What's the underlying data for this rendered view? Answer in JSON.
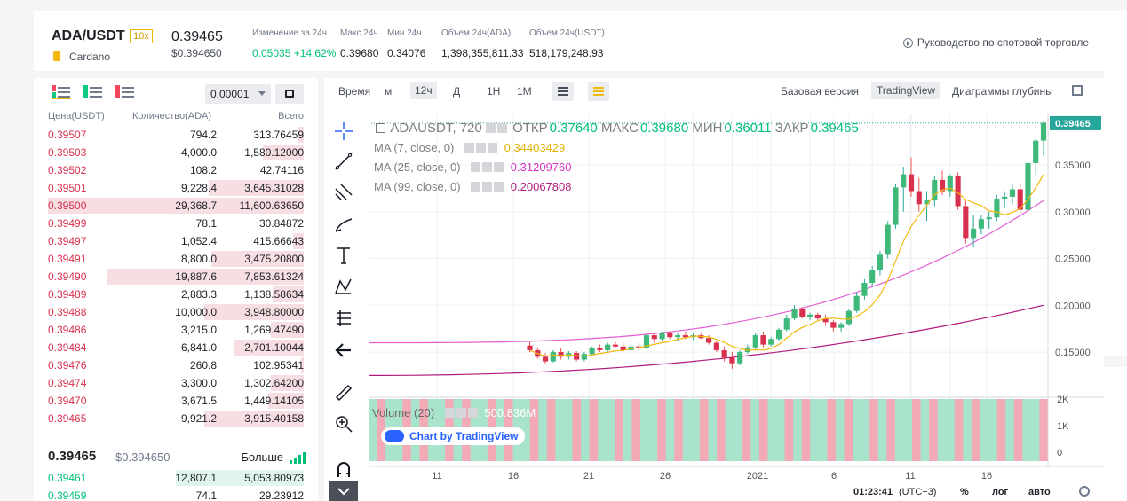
{
  "header": {
    "pair": "ADA/USDT",
    "leverage": "10x",
    "coin_name": "Cardano",
    "last_price": "0.39465",
    "last_price_usd": "$0.394650",
    "stats": [
      {
        "label": "Изменение за 24ч",
        "value": "0.05035 +14.62%",
        "color": "green"
      },
      {
        "label": "Макс 24ч",
        "value": "0.39680"
      },
      {
        "label": "Мин 24ч",
        "value": "0.34076"
      },
      {
        "label": "Объем 24ч(ADA)",
        "value": "1,398,355,811.33"
      },
      {
        "label": "Объем 24ч(USDT)",
        "value": "518,179,248.93"
      }
    ],
    "guide_link": "Руководство по спотовой торговле"
  },
  "orderbook": {
    "precision": "0.00001",
    "col_price": "Цена(USDT)",
    "col_qty": "Количество(ADA)",
    "col_total": "Всего",
    "asks": [
      {
        "price": "0.39507",
        "qty": "794.2",
        "total": "313.76459",
        "depth": 0.02
      },
      {
        "price": "0.39503",
        "qty": "4,000.0",
        "total": "1,580.12000",
        "depth": 0.16
      },
      {
        "price": "0.39502",
        "qty": "108.2",
        "total": "42.74116",
        "depth": 0.0
      },
      {
        "price": "0.39501",
        "qty": "9,228.4",
        "total": "3,645.31028",
        "depth": 0.37
      },
      {
        "price": "0.39500",
        "qty": "29,368.7",
        "total": "11,600.63650",
        "depth": 1.0
      },
      {
        "price": "0.39499",
        "qty": "78.1",
        "total": "30.84872",
        "depth": 0.0
      },
      {
        "price": "0.39497",
        "qty": "1,052.4",
        "total": "415.66643",
        "depth": 0.04
      },
      {
        "price": "0.39491",
        "qty": "8,800.0",
        "total": "3,475.20800",
        "depth": 0.36
      },
      {
        "price": "0.39490",
        "qty": "19,887.6",
        "total": "7,853.61324",
        "depth": 0.77
      },
      {
        "price": "0.39489",
        "qty": "2,883.3",
        "total": "1,138.58634",
        "depth": 0.12
      },
      {
        "price": "0.39488",
        "qty": "10,000.0",
        "total": "3,948.80000",
        "depth": 0.39
      },
      {
        "price": "0.39486",
        "qty": "3,215.0",
        "total": "1,269.47490",
        "depth": 0.13
      },
      {
        "price": "0.39484",
        "qty": "6,841.0",
        "total": "2,701.10044",
        "depth": 0.27
      },
      {
        "price": "0.39476",
        "qty": "260.8",
        "total": "102.95341",
        "depth": 0.01
      },
      {
        "price": "0.39474",
        "qty": "3,300.0",
        "total": "1,302.64200",
        "depth": 0.13
      },
      {
        "price": "0.39470",
        "qty": "3,671.5",
        "total": "1,449.14105",
        "depth": 0.14
      },
      {
        "price": "0.39465",
        "qty": "9,921.2",
        "total": "3,915.40158",
        "depth": 0.39
      }
    ],
    "mid_price": "0.39465",
    "mid_usd": "$0.394650",
    "more": "Больше",
    "bids": [
      {
        "price": "0.39461",
        "qty": "12,807.1",
        "total": "5,053.80973",
        "depth": 0.5
      },
      {
        "price": "0.39459",
        "qty": "74.1",
        "total": "29.23912",
        "depth": 0.0
      }
    ]
  },
  "chart_toolbar": {
    "time": "Время",
    "m": "м",
    "interval": "12ч",
    "d": "Д",
    "h1": "1Н",
    "m1": "1М",
    "basic": "Базовая версия",
    "tradingview": "TradingView",
    "depth": "Диаграммы глубины"
  },
  "legend": {
    "symbol": "ADAUSDT, 720",
    "open_label": "ОТКР",
    "open": "0.37640",
    "high_label": "МАКС",
    "high": "0.39680",
    "low_label": "МИН",
    "low": "0.36011",
    "close_label": "ЗАКР",
    "close": "0.39465",
    "ma7": "MA (7, close, 0)",
    "ma7_val": "0.34403429",
    "ma25": "MA (25, close, 0)",
    "ma25_val": "0.31209760",
    "ma99": "MA (99, close, 0)",
    "ma99_val": "0.20067808",
    "volume": "Volume (20)",
    "volume_val": "500.836M",
    "watermark": "Chart by TradingView"
  },
  "chart_data": {
    "type": "candlestick",
    "price_ticks": [
      "0.35000",
      "0.30000",
      "0.25000",
      "0.20000",
      "0.15000"
    ],
    "price_tick_values": [
      0.35,
      0.3,
      0.25,
      0.2,
      0.15
    ],
    "price_badge": "0.39465",
    "volume_ticks": [
      "2K",
      "1K",
      "0"
    ],
    "x_ticks": [
      "11",
      "16",
      "21",
      "26",
      "2021",
      "6",
      "11",
      "16"
    ],
    "ylim": [
      0.115,
      0.405
    ],
    "candles": [
      [
        0.157,
        0.161,
        0.15,
        0.152
      ],
      [
        0.152,
        0.155,
        0.143,
        0.145
      ],
      [
        0.145,
        0.149,
        0.137,
        0.14
      ],
      [
        0.14,
        0.152,
        0.139,
        0.15
      ],
      [
        0.15,
        0.154,
        0.142,
        0.145
      ],
      [
        0.145,
        0.151,
        0.142,
        0.149
      ],
      [
        0.149,
        0.151,
        0.14,
        0.142
      ],
      [
        0.142,
        0.15,
        0.14,
        0.148
      ],
      [
        0.148,
        0.156,
        0.146,
        0.154
      ],
      [
        0.154,
        0.158,
        0.15,
        0.152
      ],
      [
        0.152,
        0.16,
        0.15,
        0.158
      ],
      [
        0.158,
        0.162,
        0.155,
        0.156
      ],
      [
        0.156,
        0.16,
        0.15,
        0.152
      ],
      [
        0.152,
        0.158,
        0.15,
        0.156
      ],
      [
        0.156,
        0.16,
        0.152,
        0.154
      ],
      [
        0.154,
        0.17,
        0.153,
        0.168
      ],
      [
        0.168,
        0.171,
        0.16,
        0.164
      ],
      [
        0.164,
        0.172,
        0.162,
        0.17
      ],
      [
        0.17,
        0.172,
        0.164,
        0.166
      ],
      [
        0.166,
        0.17,
        0.162,
        0.168
      ],
      [
        0.168,
        0.172,
        0.164,
        0.166
      ],
      [
        0.166,
        0.17,
        0.163,
        0.168
      ],
      [
        0.168,
        0.171,
        0.164,
        0.165
      ],
      [
        0.165,
        0.168,
        0.158,
        0.16
      ],
      [
        0.16,
        0.162,
        0.15,
        0.152
      ],
      [
        0.152,
        0.156,
        0.14,
        0.144
      ],
      [
        0.144,
        0.15,
        0.132,
        0.138
      ],
      [
        0.138,
        0.152,
        0.136,
        0.15
      ],
      [
        0.15,
        0.158,
        0.148,
        0.155
      ],
      [
        0.155,
        0.17,
        0.153,
        0.168
      ],
      [
        0.168,
        0.172,
        0.155,
        0.158
      ],
      [
        0.158,
        0.166,
        0.156,
        0.164
      ],
      [
        0.164,
        0.176,
        0.162,
        0.174
      ],
      [
        0.174,
        0.19,
        0.172,
        0.186
      ],
      [
        0.186,
        0.2,
        0.184,
        0.196
      ],
      [
        0.196,
        0.198,
        0.186,
        0.188
      ],
      [
        0.188,
        0.192,
        0.184,
        0.19
      ],
      [
        0.19,
        0.192,
        0.184,
        0.186
      ],
      [
        0.186,
        0.19,
        0.178,
        0.182
      ],
      [
        0.182,
        0.184,
        0.172,
        0.176
      ],
      [
        0.176,
        0.182,
        0.172,
        0.18
      ],
      [
        0.18,
        0.196,
        0.178,
        0.194
      ],
      [
        0.194,
        0.214,
        0.192,
        0.21
      ],
      [
        0.21,
        0.228,
        0.206,
        0.224
      ],
      [
        0.224,
        0.242,
        0.22,
        0.238
      ],
      [
        0.238,
        0.258,
        0.232,
        0.254
      ],
      [
        0.254,
        0.29,
        0.25,
        0.286
      ],
      [
        0.286,
        0.33,
        0.282,
        0.326
      ],
      [
        0.326,
        0.348,
        0.3,
        0.34
      ],
      [
        0.34,
        0.358,
        0.316,
        0.322
      ],
      [
        0.322,
        0.336,
        0.3,
        0.308
      ],
      [
        0.308,
        0.322,
        0.29,
        0.312
      ],
      [
        0.312,
        0.338,
        0.306,
        0.334
      ],
      [
        0.334,
        0.344,
        0.318,
        0.322
      ],
      [
        0.322,
        0.34,
        0.316,
        0.338
      ],
      [
        0.338,
        0.342,
        0.302,
        0.306
      ],
      [
        0.306,
        0.312,
        0.266,
        0.272
      ],
      [
        0.272,
        0.296,
        0.262,
        0.282
      ],
      [
        0.282,
        0.296,
        0.276,
        0.292
      ],
      [
        0.292,
        0.3,
        0.282,
        0.294
      ],
      [
        0.294,
        0.318,
        0.29,
        0.314
      ],
      [
        0.314,
        0.322,
        0.304,
        0.316
      ],
      [
        0.316,
        0.33,
        0.308,
        0.324
      ],
      [
        0.324,
        0.33,
        0.298,
        0.302
      ],
      [
        0.302,
        0.356,
        0.3,
        0.352
      ],
      [
        0.352,
        0.378,
        0.34,
        0.376
      ],
      [
        0.376,
        0.397,
        0.36,
        0.395
      ]
    ],
    "ma7_start": 0.16,
    "ma7_end": 0.344,
    "ma25_start": 0.16,
    "ma25_end": 0.312,
    "ma99_start": 0.125,
    "ma99_end": 0.2
  },
  "bottom_bar": {
    "time": "01:23:41",
    "tz": "(UTC+3)",
    "pct": "%",
    "log": "лог",
    "auto": "авто"
  }
}
